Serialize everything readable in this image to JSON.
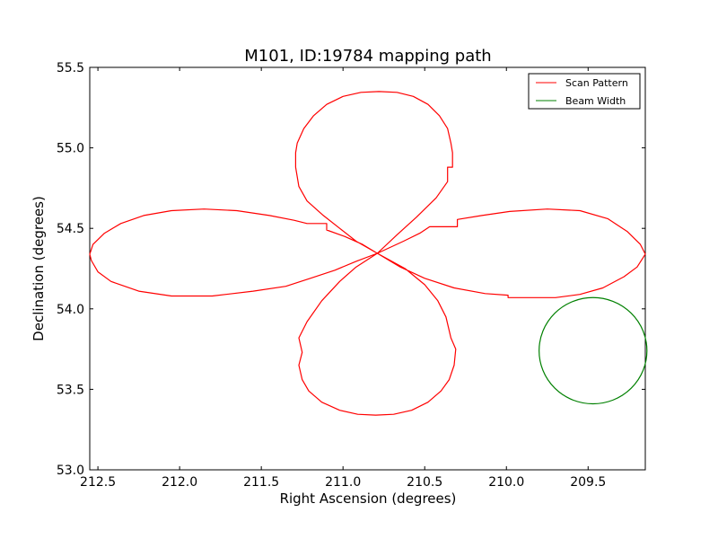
{
  "chart_data": {
    "type": "line",
    "title": "M101, ID:19784 mapping path",
    "xlabel": "Right Ascension (degrees)",
    "ylabel": "Declination (degrees)",
    "xlim": [
      212.55,
      209.15
    ],
    "ylim": [
      53.0,
      55.5
    ],
    "x_ticks": [
      212.5,
      212.0,
      211.5,
      211.0,
      210.5,
      210.0,
      209.5
    ],
    "x_tick_labels": [
      "212.5",
      "212.0",
      "211.5",
      "211.0",
      "210.5",
      "210.0",
      "209.5"
    ],
    "y_ticks": [
      53.0,
      53.5,
      54.0,
      54.5,
      55.0,
      55.5
    ],
    "y_tick_labels": [
      "53.0",
      "53.5",
      "54.0",
      "54.5",
      "55.0",
      "55.5"
    ],
    "grid": false,
    "legend_position": "upper right",
    "series": [
      {
        "name": "Scan Pattern",
        "color": "#ff0000",
        "points": [
          [
            210.79,
            54.345
          ],
          [
            210.62,
            54.25
          ],
          [
            210.5,
            54.15
          ],
          [
            210.42,
            54.05
          ],
          [
            210.37,
            53.95
          ],
          [
            210.34,
            53.82
          ],
          [
            210.31,
            53.75
          ],
          [
            210.32,
            53.65
          ],
          [
            210.35,
            53.56
          ],
          [
            210.4,
            53.49
          ],
          [
            210.48,
            53.42
          ],
          [
            210.58,
            53.37
          ],
          [
            210.69,
            53.345
          ],
          [
            210.8,
            53.34
          ],
          [
            210.91,
            53.345
          ],
          [
            211.02,
            53.37
          ],
          [
            211.13,
            53.42
          ],
          [
            211.21,
            53.49
          ],
          [
            211.25,
            53.56
          ],
          [
            211.27,
            53.65
          ],
          [
            211.25,
            53.73
          ],
          [
            211.27,
            53.82
          ],
          [
            211.22,
            53.92
          ],
          [
            211.13,
            54.05
          ],
          [
            211.02,
            54.17
          ],
          [
            210.92,
            54.26
          ],
          [
            210.79,
            54.345
          ],
          [
            210.63,
            54.42
          ],
          [
            210.53,
            54.47
          ],
          [
            210.47,
            54.51
          ],
          [
            210.3,
            54.51
          ],
          [
            210.3,
            54.555
          ],
          [
            210.15,
            54.58
          ],
          [
            209.98,
            54.605
          ],
          [
            209.75,
            54.62
          ],
          [
            209.55,
            54.61
          ],
          [
            209.38,
            54.56
          ],
          [
            209.26,
            54.48
          ],
          [
            209.18,
            54.4
          ],
          [
            209.15,
            54.34
          ],
          [
            209.2,
            54.26
          ],
          [
            209.28,
            54.2
          ],
          [
            209.41,
            54.13
          ],
          [
            209.55,
            54.09
          ],
          [
            209.7,
            54.07
          ],
          [
            209.85,
            54.07
          ],
          [
            209.99,
            54.07
          ],
          [
            209.99,
            54.085
          ],
          [
            210.13,
            54.095
          ],
          [
            210.32,
            54.13
          ],
          [
            210.5,
            54.19
          ],
          [
            210.65,
            54.26
          ],
          [
            210.79,
            54.345
          ],
          [
            210.92,
            54.42
          ],
          [
            211.02,
            54.5
          ],
          [
            211.12,
            54.58
          ],
          [
            211.22,
            54.67
          ],
          [
            211.27,
            54.76
          ],
          [
            211.29,
            54.88
          ],
          [
            211.29,
            54.97
          ],
          [
            211.28,
            55.03
          ],
          [
            211.24,
            55.12
          ],
          [
            211.18,
            55.2
          ],
          [
            211.1,
            55.27
          ],
          [
            211.0,
            55.32
          ],
          [
            210.89,
            55.345
          ],
          [
            210.78,
            55.35
          ],
          [
            210.67,
            55.345
          ],
          [
            210.57,
            55.32
          ],
          [
            210.48,
            55.27
          ],
          [
            210.41,
            55.2
          ],
          [
            210.36,
            55.12
          ],
          [
            210.34,
            55.03
          ],
          [
            210.33,
            54.97
          ],
          [
            210.33,
            54.88
          ],
          [
            210.36,
            54.88
          ],
          [
            210.36,
            54.79
          ],
          [
            210.43,
            54.69
          ],
          [
            210.55,
            54.57
          ],
          [
            210.67,
            54.46
          ],
          [
            210.79,
            54.345
          ],
          [
            210.92,
            54.295
          ],
          [
            211.05,
            54.24
          ],
          [
            211.2,
            54.19
          ],
          [
            211.35,
            54.14
          ],
          [
            211.55,
            54.11
          ],
          [
            211.8,
            54.08
          ],
          [
            212.05,
            54.08
          ],
          [
            212.25,
            54.11
          ],
          [
            212.42,
            54.17
          ],
          [
            212.5,
            54.23
          ],
          [
            212.54,
            54.3
          ],
          [
            212.55,
            54.34
          ],
          [
            212.53,
            54.4
          ],
          [
            212.46,
            54.47
          ],
          [
            212.36,
            54.53
          ],
          [
            212.22,
            54.58
          ],
          [
            212.05,
            54.61
          ],
          [
            211.85,
            54.62
          ],
          [
            211.65,
            54.61
          ],
          [
            211.45,
            54.58
          ],
          [
            211.3,
            54.55
          ],
          [
            211.22,
            54.53
          ],
          [
            211.1,
            54.53
          ],
          [
            211.1,
            54.49
          ],
          [
            210.99,
            54.45
          ],
          [
            210.88,
            54.4
          ],
          [
            210.79,
            54.345
          ]
        ]
      },
      {
        "name": "Beam Width",
        "color": "#008000",
        "shape": "circle",
        "center": [
          209.47,
          53.74
        ],
        "radius_ra": 0.33,
        "radius_dec": 0.33
      }
    ]
  }
}
